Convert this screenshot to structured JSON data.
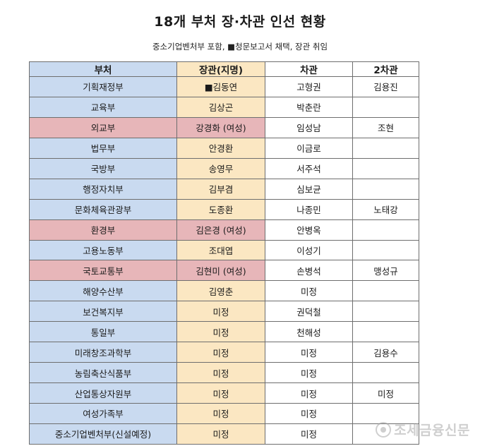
{
  "title": "18개 부처 장·차관 인선 현황",
  "subtitle": "중소기업벤처부 포함, ■청문보고서 채택, 장관 취임",
  "headers": [
    "부처",
    "장관(지명)",
    "차관",
    "2차관"
  ],
  "rows": [
    {
      "dept": "기획재정부",
      "minister": "■김동연",
      "vice": "고형권",
      "vice2": "김용진",
      "female": false
    },
    {
      "dept": "교육부",
      "minister": "김상곤",
      "vice": "박춘란",
      "vice2": "",
      "female": false
    },
    {
      "dept": "외교부",
      "minister": "강경화 (여성)",
      "vice": "임성남",
      "vice2": "조현",
      "female": true
    },
    {
      "dept": "법무부",
      "minister": "안경환",
      "vice": "이금로",
      "vice2": "",
      "female": false
    },
    {
      "dept": "국방부",
      "minister": "송영무",
      "vice": "서주석",
      "vice2": "",
      "female": false
    },
    {
      "dept": "행정자치부",
      "minister": "김부겸",
      "vice": "심보균",
      "vice2": "",
      "female": false
    },
    {
      "dept": "문화체육관광부",
      "minister": "도종환",
      "vice": "나종민",
      "vice2": "노태강",
      "female": false
    },
    {
      "dept": "환경부",
      "minister": "김은경 (여성)",
      "vice": "안병옥",
      "vice2": "",
      "female": true
    },
    {
      "dept": "고용노동부",
      "minister": "조대엽",
      "vice": "이성기",
      "vice2": "",
      "female": false
    },
    {
      "dept": "국토교통부",
      "minister": "김현미 (여성)",
      "vice": "손병석",
      "vice2": "맹성규",
      "female": true
    },
    {
      "dept": "해양수산부",
      "minister": "김영춘",
      "vice": "미정",
      "vice2": "",
      "female": false
    },
    {
      "dept": "보건복지부",
      "minister": "미정",
      "vice": "권덕철",
      "vice2": "",
      "female": false
    },
    {
      "dept": "통일부",
      "minister": "미정",
      "vice": "천해성",
      "vice2": "",
      "female": false
    },
    {
      "dept": "미래창조과학부",
      "minister": "미정",
      "vice": "미정",
      "vice2": "김용수",
      "female": false
    },
    {
      "dept": "농림축산식품부",
      "minister": "미정",
      "vice": "미정",
      "vice2": "",
      "female": false
    },
    {
      "dept": "산업통상자원부",
      "minister": "미정",
      "vice": "미정",
      "vice2": "미정",
      "female": false
    },
    {
      "dept": "여성가족부",
      "minister": "미정",
      "vice": "미정",
      "vice2": "",
      "female": false
    },
    {
      "dept": "중소기업벤처부(신설예정)",
      "minister": "미정",
      "vice": "미정",
      "vice2": "",
      "female": false
    }
  ],
  "watermark": "조세금융신문",
  "colors": {
    "dept_bg": "#c9daf0",
    "minister_bg": "#fbe7c2",
    "female_bg": "#e7b6b9",
    "border": "#6e6e6e"
  }
}
